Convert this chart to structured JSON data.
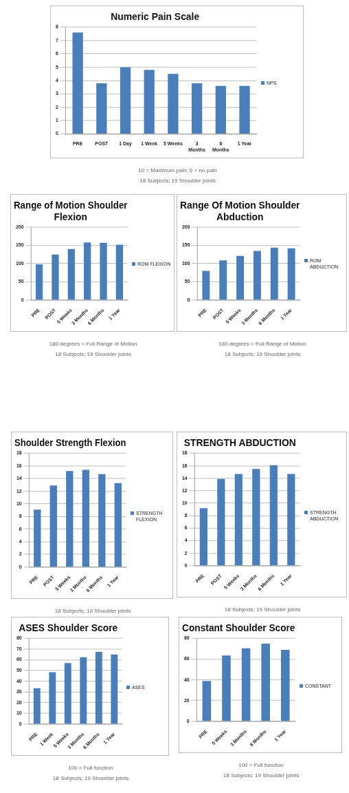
{
  "chart_data": [
    {
      "type": "bar",
      "title": "Numeric Pain Scale",
      "categories": [
        "PRE",
        "POST",
        "1 Day",
        "1 Week",
        "5 Weeks",
        "3 Months",
        "6 Months",
        "1 Year"
      ],
      "series": [
        {
          "name": "NPS",
          "color": "#4a7ebb",
          "values": [
            7.6,
            3.8,
            5.0,
            4.8,
            4.5,
            3.8,
            3.6,
            3.6
          ]
        }
      ],
      "ylim": [
        0,
        8
      ],
      "yticks": [
        0,
        1,
        2,
        3,
        4,
        5,
        6,
        7,
        8
      ],
      "grid": "y",
      "legend": "right",
      "annotations": [
        "10 = Maximum pain; 0 = no pain",
        "18 Subjects; 19 Shoulder joints"
      ]
    },
    {
      "type": "bar",
      "title": "Range of Motion Shoulder Flexion",
      "categories": [
        "PRE",
        "POST",
        "5 Weeks",
        "3 Months",
        "6 Months",
        "1 Year"
      ],
      "series": [
        {
          "name": "ROM FLEXION",
          "color": "#4a7ebb",
          "values": [
            98,
            125,
            140,
            158,
            157,
            152
          ]
        }
      ],
      "ylim": [
        0,
        200
      ],
      "yticks": [
        0,
        50,
        100,
        150,
        200
      ],
      "grid": "y",
      "legend": "right",
      "annotations": [
        "180 degrees = Full Range of Motion",
        "18 Subjects; 19 Shoulder joints"
      ]
    },
    {
      "type": "bar",
      "title": "Range Of Motion Shoulder Abduction",
      "categories": [
        "PRE",
        "POST",
        "5 Weeks",
        "3 Months",
        "6 Months",
        "1 Year"
      ],
      "series": [
        {
          "name": "ROM ABDUCTION",
          "color": "#4a7ebb",
          "values": [
            80,
            109,
            121,
            135,
            144,
            142
          ]
        }
      ],
      "ylim": [
        0,
        200
      ],
      "yticks": [
        0,
        50,
        100,
        150,
        200
      ],
      "grid": "y",
      "legend": "right",
      "annotations": [
        "180 degrees = Full Range of Motion",
        "18 Subjects; 19 Shoulder joints"
      ]
    },
    {
      "type": "bar",
      "title": "Shoulder Strength Flexion",
      "categories": [
        "PRE",
        "POST",
        "5 Weeks",
        "3 Months",
        "6 Months",
        "1 Year"
      ],
      "series": [
        {
          "name": "STRENGTH FLEXION",
          "color": "#4a7ebb",
          "values": [
            9.1,
            12.9,
            15.2,
            15.4,
            14.7,
            13.3
          ]
        }
      ],
      "ylim": [
        0,
        18
      ],
      "yticks": [
        0,
        2,
        4,
        6,
        8,
        10,
        12,
        14,
        16,
        18
      ],
      "grid": "y",
      "legend": "right",
      "annotations": [
        "18 Subjects; 19 Shoulder joints"
      ]
    },
    {
      "type": "bar",
      "title": "STRENGTH ABDUCTION",
      "categories": [
        "PRE",
        "POST",
        "5 Weeks",
        "3 Months",
        "6 Months",
        "1 Year"
      ],
      "series": [
        {
          "name": "STRENGTH ABDUCTION",
          "color": "#4a7ebb",
          "values": [
            9.2,
            13.9,
            14.7,
            15.5,
            16.1,
            14.7
          ]
        }
      ],
      "ylim": [
        0,
        18
      ],
      "yticks": [
        0,
        2,
        4,
        6,
        8,
        10,
        12,
        14,
        16,
        18
      ],
      "grid": "y",
      "legend": "right",
      "annotations": [
        "18 Subjects; 19 Shoulder joints"
      ]
    },
    {
      "type": "bar",
      "title": "ASES Shoulder Score",
      "categories": [
        "PRE",
        "1 Week",
        "5 Weeks",
        "3 Months",
        "6 Months",
        "1 Year"
      ],
      "series": [
        {
          "name": "ASES",
          "color": "#4a7ebb",
          "values": [
            33.5,
            48.5,
            57,
            62.5,
            67.5,
            65
          ]
        }
      ],
      "ylim": [
        0,
        80
      ],
      "yticks": [
        0,
        10,
        20,
        30,
        40,
        50,
        60,
        70,
        80
      ],
      "grid": "y",
      "legend": "right",
      "annotations": [
        "100 = Full function",
        "18 Subjects; 19 Shoulder joints"
      ]
    },
    {
      "type": "bar",
      "title": "Constant Shoulder Score",
      "categories": [
        "PRE",
        "5 Weeks",
        "3 Months",
        "6 Months",
        "1 Year"
      ],
      "series": [
        {
          "name": "CONSTANT",
          "color": "#4a7ebb",
          "values": [
            39,
            63.5,
            70.5,
            75,
            69
          ]
        }
      ],
      "ylim": [
        0,
        80
      ],
      "yticks": [
        0,
        20,
        40,
        60,
        80
      ],
      "grid": "y",
      "legend": "right",
      "annotations": [
        "100 = Full function",
        "18 Subjects; 19 Shoulder joints"
      ]
    }
  ]
}
